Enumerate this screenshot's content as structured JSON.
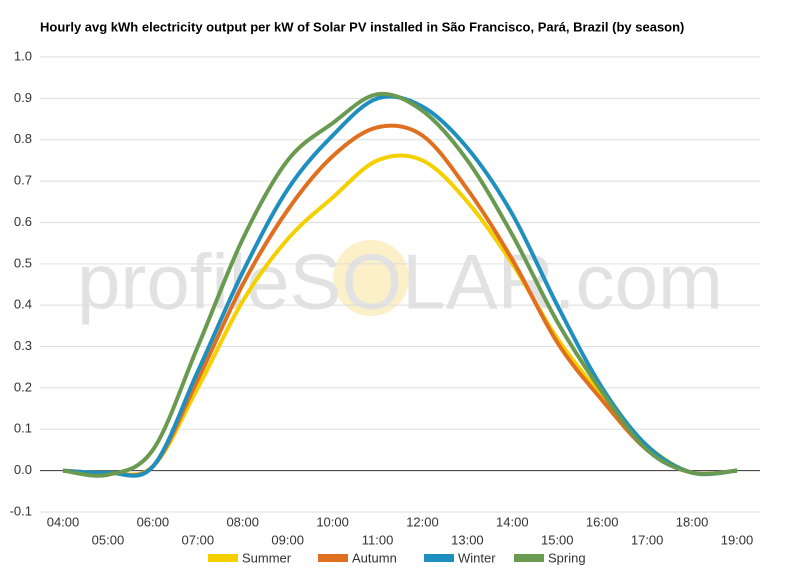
{
  "chart_data": {
    "type": "line",
    "title": "Hourly avg kWh electricity output per kW of Solar PV installed in São Francisco, Pará, Brazil (by season)",
    "watermark": "profileSOLAR.com",
    "categories": [
      "04:00",
      "05:00",
      "06:00",
      "07:00",
      "08:00",
      "09:00",
      "10:00",
      "11:00",
      "12:00",
      "13:00",
      "14:00",
      "15:00",
      "16:00",
      "17:00",
      "18:00",
      "19:00"
    ],
    "series": [
      {
        "name": "Summer",
        "color": "#f5d000",
        "values": [
          0,
          -0.005,
          0.01,
          0.2,
          0.41,
          0.56,
          0.66,
          0.75,
          0.75,
          0.65,
          0.5,
          0.32,
          0.18,
          0.06,
          -0.005,
          0
        ]
      },
      {
        "name": "Autumn",
        "color": "#e07020",
        "values": [
          0,
          -0.005,
          0.01,
          0.22,
          0.45,
          0.63,
          0.76,
          0.83,
          0.81,
          0.68,
          0.51,
          0.31,
          0.17,
          0.05,
          -0.005,
          0
        ]
      },
      {
        "name": "Winter",
        "color": "#1f8fbf",
        "values": [
          0,
          -0.005,
          0.01,
          0.24,
          0.48,
          0.68,
          0.81,
          0.9,
          0.88,
          0.78,
          0.62,
          0.4,
          0.2,
          0.06,
          -0.005,
          0
        ]
      },
      {
        "name": "Spring",
        "color": "#6a9a50",
        "values": [
          0,
          -0.01,
          0.05,
          0.3,
          0.56,
          0.75,
          0.84,
          0.91,
          0.87,
          0.75,
          0.57,
          0.36,
          0.19,
          0.05,
          -0.005,
          0
        ]
      }
    ],
    "ylim": [
      -0.1,
      1.0
    ],
    "yticks": [
      {
        "value": 1.0,
        "label": "1.0"
      },
      0.9,
      0.8,
      0.7,
      0.6,
      0.5,
      0.4,
      0.3,
      0.2,
      0.1,
      {
        "value": 0,
        "label": "0.0"
      },
      -0.1
    ],
    "grid": true,
    "legend": "bottom"
  }
}
